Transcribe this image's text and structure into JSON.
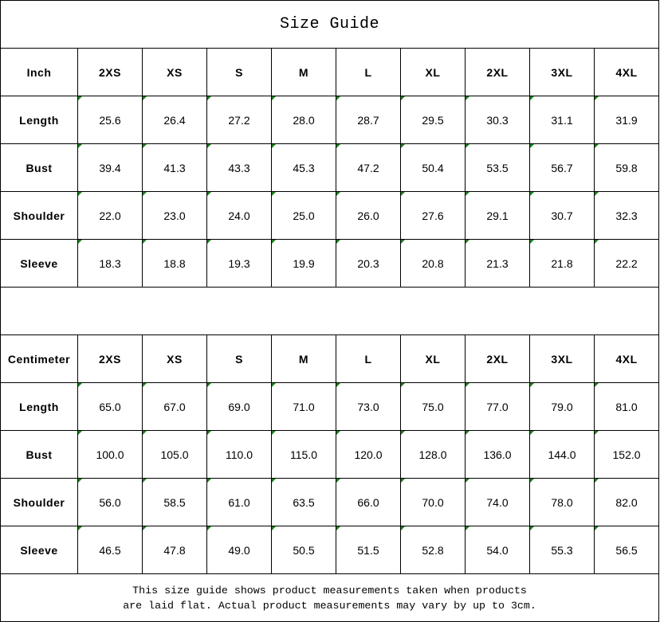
{
  "title": "Size Guide",
  "sizes": [
    "2XS",
    "XS",
    "S",
    "M",
    "L",
    "XL",
    "2XL",
    "3XL",
    "4XL"
  ],
  "tables": [
    {
      "unit": "Inch",
      "rows": [
        {
          "label": "Length",
          "values": [
            "25.6",
            "26.4",
            "27.2",
            "28.0",
            "28.7",
            "29.5",
            "30.3",
            "31.1",
            "31.9"
          ]
        },
        {
          "label": "Bust",
          "values": [
            "39.4",
            "41.3",
            "43.3",
            "45.3",
            "47.2",
            "50.4",
            "53.5",
            "56.7",
            "59.8"
          ]
        },
        {
          "label": "Shoulder",
          "values": [
            "22.0",
            "23.0",
            "24.0",
            "25.0",
            "26.0",
            "27.6",
            "29.1",
            "30.7",
            "32.3"
          ]
        },
        {
          "label": "Sleeve",
          "values": [
            "18.3",
            "18.8",
            "19.3",
            "19.9",
            "20.3",
            "20.8",
            "21.3",
            "21.8",
            "22.2"
          ]
        }
      ]
    },
    {
      "unit": "Centimeter",
      "rows": [
        {
          "label": "Length",
          "values": [
            "65.0",
            "67.0",
            "69.0",
            "71.0",
            "73.0",
            "75.0",
            "77.0",
            "79.0",
            "81.0"
          ]
        },
        {
          "label": "Bust",
          "values": [
            "100.0",
            "105.0",
            "110.0",
            "115.0",
            "120.0",
            "128.0",
            "136.0",
            "144.0",
            "152.0"
          ]
        },
        {
          "label": "Shoulder",
          "values": [
            "56.0",
            "58.5",
            "61.0",
            "63.5",
            "66.0",
            "70.0",
            "74.0",
            "78.0",
            "82.0"
          ]
        },
        {
          "label": "Sleeve",
          "values": [
            "46.5",
            "47.8",
            "49.0",
            "50.5",
            "51.5",
            "52.8",
            "54.0",
            "55.3",
            "56.5"
          ]
        }
      ]
    }
  ],
  "footer": {
    "line1": "This size guide shows product measurements taken when products",
    "line2": "are laid flat. Actual product measurements may vary by up to 3cm."
  },
  "colors": {
    "error_indicator": "#1a7f1a",
    "border": "#000000"
  }
}
